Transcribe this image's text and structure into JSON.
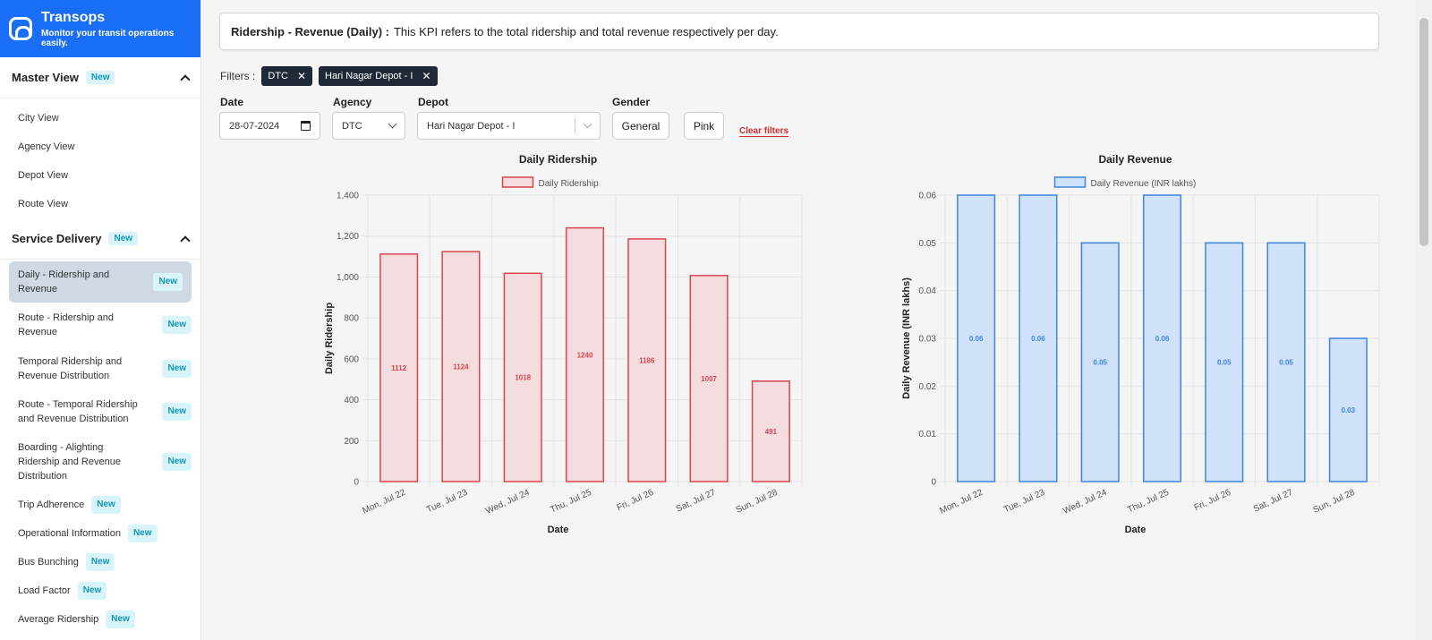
{
  "brand": {
    "name": "Transops",
    "tagline": "Monitor your transit operations easily."
  },
  "badge_new": "New",
  "sidebar": {
    "master": {
      "title": "Master View",
      "items": [
        "City View",
        "Agency View",
        "Depot View",
        "Route View"
      ]
    },
    "service": {
      "title": "Service Delivery",
      "items": [
        {
          "l1": "Daily - Ridership and",
          "l2": "Revenue",
          "active": true
        },
        {
          "l1": "Route - Ridership and",
          "l2": "Revenue"
        },
        {
          "l1": "Temporal Ridership and",
          "l2": "Revenue Distribution"
        },
        {
          "l1": "Route - Temporal Ridership",
          "l2": "and Revenue Distribution"
        },
        {
          "l1": "Boarding - Alighting",
          "l2": "Ridership and Revenue",
          "l3": "Distribution"
        },
        {
          "l1": "Trip Adherence"
        },
        {
          "l1": "Operational Information"
        },
        {
          "l1": "Bus Bunching"
        },
        {
          "l1": "Load Factor"
        },
        {
          "l1": "Average Ridership"
        }
      ]
    }
  },
  "kpi": {
    "title": "Ridership - Revenue (Daily) :",
    "description": "This KPI refers to the total ridership and total revenue respectively per day."
  },
  "filters": {
    "label": "Filters :",
    "chips": [
      "DTC",
      "Hari Nagar Depot - I"
    ],
    "date_label": "Date",
    "date_value": "28-07-2024",
    "agency_label": "Agency",
    "agency_value": "DTC",
    "depot_label": "Depot",
    "depot_value": "Hari Nagar Depot - I",
    "gender_label": "Gender",
    "gender_options": [
      "General",
      "Pink"
    ],
    "clear": "Clear filters"
  },
  "chart_data": [
    {
      "type": "bar",
      "title": "Daily Ridership",
      "legend": "Daily Ridership",
      "legend_position": "top",
      "xlabel": "Date",
      "ylabel": "Daily Ridership",
      "categories": [
        "Mon, Jul 22",
        "Tue, Jul 23",
        "Wed, Jul 24",
        "Thu, Jul 25",
        "Fri, Jul 26",
        "Sat, Jul 27",
        "Sun, Jul 28"
      ],
      "values": [
        1112,
        1124,
        1018,
        1240,
        1186,
        1007,
        491
      ],
      "value_labels": [
        "1112",
        "1124",
        "1018",
        "1240",
        "1186",
        "1007",
        "491"
      ],
      "ylim": [
        0,
        1400
      ],
      "yticks": [
        0,
        200,
        400,
        600,
        800,
        1000,
        1200,
        1400
      ],
      "ytick_labels": [
        "0",
        "200",
        "400",
        "600",
        "800",
        "1,000",
        "1,200",
        "1,400"
      ],
      "grid": true,
      "fill": "#f5dcdf",
      "stroke": "#d9464e",
      "label_color": "#d9464e"
    },
    {
      "type": "bar",
      "title": "Daily Revenue",
      "legend": "Daily Revenue (INR lakhs)",
      "legend_position": "top",
      "xlabel": "Date",
      "ylabel": "Daily Revenue (INR lakhs)",
      "categories": [
        "Mon, Jul 22",
        "Tue, Jul 23",
        "Wed, Jul 24",
        "Thu, Jul 25",
        "Fri, Jul 26",
        "Sat, Jul 27",
        "Sun, Jul 28"
      ],
      "values": [
        0.06,
        0.06,
        0.05,
        0.06,
        0.05,
        0.05,
        0.03
      ],
      "value_labels": [
        "0.06",
        "0.06",
        "0.05",
        "0.06",
        "0.05",
        "0.05",
        "0.03"
      ],
      "ylim": [
        0,
        0.06
      ],
      "yticks": [
        0,
        0.01,
        0.02,
        0.03,
        0.04,
        0.05,
        0.06
      ],
      "ytick_labels": [
        "0",
        "0.01",
        "0.02",
        "0.03",
        "0.04",
        "0.05",
        "0.06"
      ],
      "grid": true,
      "fill": "#cfe2fa",
      "stroke": "#3f86df",
      "label_color": "#3f86df"
    }
  ]
}
